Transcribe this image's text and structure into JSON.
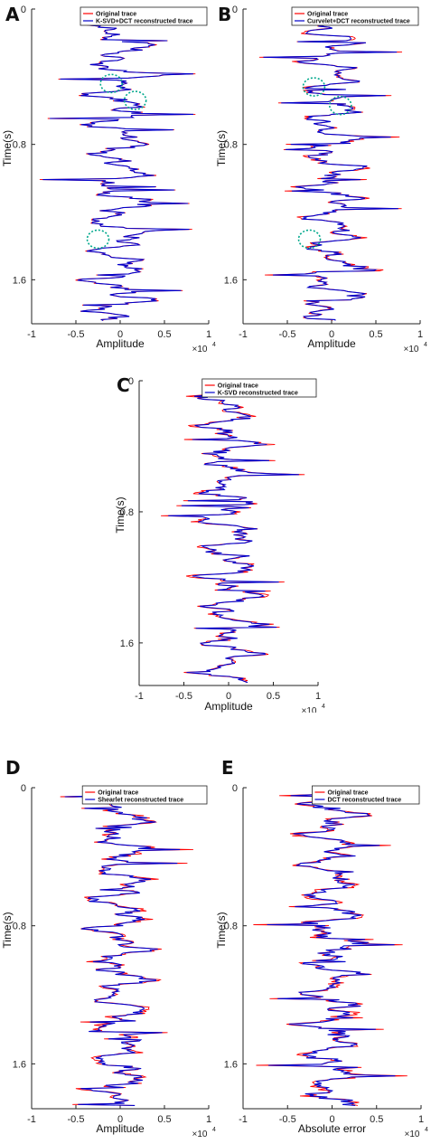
{
  "colors": {
    "original": "#ff0000",
    "reconstructed": "#0000cc",
    "circle": "#00a88c",
    "axis": "#222222"
  },
  "chart_data": [
    {
      "type": "line",
      "panel": "A",
      "ylabel": "Time(s)",
      "xlabel": "Amplitude",
      "xexp": "×10",
      "xlim": [
        -1,
        1
      ],
      "ylim": [
        0,
        1.86
      ],
      "xticks": [
        "-1",
        "-0.5",
        "0",
        "0.5",
        "1"
      ],
      "yticks": [
        "0",
        "0.8",
        "1.6"
      ],
      "series": [
        {
          "name": "Original trace"
        },
        {
          "name": "K-SVD+DCT reconstructed trace"
        }
      ],
      "markers": [
        {
          "x": -0.1,
          "y": 0.44
        },
        {
          "x": 0.17,
          "y": 0.54
        },
        {
          "x": -0.25,
          "y": 1.36
        }
      ]
    },
    {
      "type": "line",
      "panel": "B",
      "ylabel": "Time(s)",
      "xlabel": "Amplitude",
      "xexp": "×10",
      "xlim": [
        -1,
        1
      ],
      "ylim": [
        0,
        1.86
      ],
      "xticks": [
        "-1",
        "-0.5",
        "0",
        "0.5",
        "1"
      ],
      "yticks": [
        "0",
        "0.8",
        "1.6"
      ],
      "series": [
        {
          "name": "Original trace"
        },
        {
          "name": "Curvelet+DCT reconstructed trace"
        }
      ],
      "markers": [
        {
          "x": -0.2,
          "y": 0.46
        },
        {
          "x": 0.1,
          "y": 0.57
        },
        {
          "x": -0.25,
          "y": 1.36
        }
      ]
    },
    {
      "type": "line",
      "panel": "C",
      "ylabel": "Time(s)",
      "xlabel": "Amplitude",
      "xexp": "×10",
      "xlim": [
        -1,
        1
      ],
      "ylim": [
        0,
        1.86
      ],
      "xticks": [
        "-1",
        "-0.5",
        "0",
        "0.5",
        "1"
      ],
      "yticks": [
        "0",
        "0.8",
        "1.6"
      ],
      "series": [
        {
          "name": "Original trace"
        },
        {
          "name": "K-SVD reconstructed trace"
        }
      ],
      "markers": []
    },
    {
      "type": "line",
      "panel": "D",
      "ylabel": "Time(s)",
      "xlabel": "Amplitude",
      "xexp": "×10",
      "xlim": [
        -1,
        1
      ],
      "ylim": [
        0,
        1.86
      ],
      "xticks": [
        "-1",
        "-0.5",
        "0",
        "0.5",
        "1"
      ],
      "yticks": [
        "0",
        "0.8",
        "1.6"
      ],
      "series": [
        {
          "name": "Original trace"
        },
        {
          "name": "Shearlet reconstructed trace"
        }
      ],
      "markers": []
    },
    {
      "type": "line",
      "panel": "E",
      "ylabel": "Time(s)",
      "xlabel": "Absolute error",
      "xexp": "×10",
      "xlim": [
        -1,
        1
      ],
      "ylim": [
        0,
        1.86
      ],
      "xticks": [
        "-1",
        "-0.5",
        "0",
        "0.5",
        "1"
      ],
      "yticks": [
        "0",
        "0.8",
        "1.6"
      ],
      "series": [
        {
          "name": "Original trace"
        },
        {
          "name": "DCT reconstructed trace"
        }
      ],
      "markers": []
    }
  ]
}
